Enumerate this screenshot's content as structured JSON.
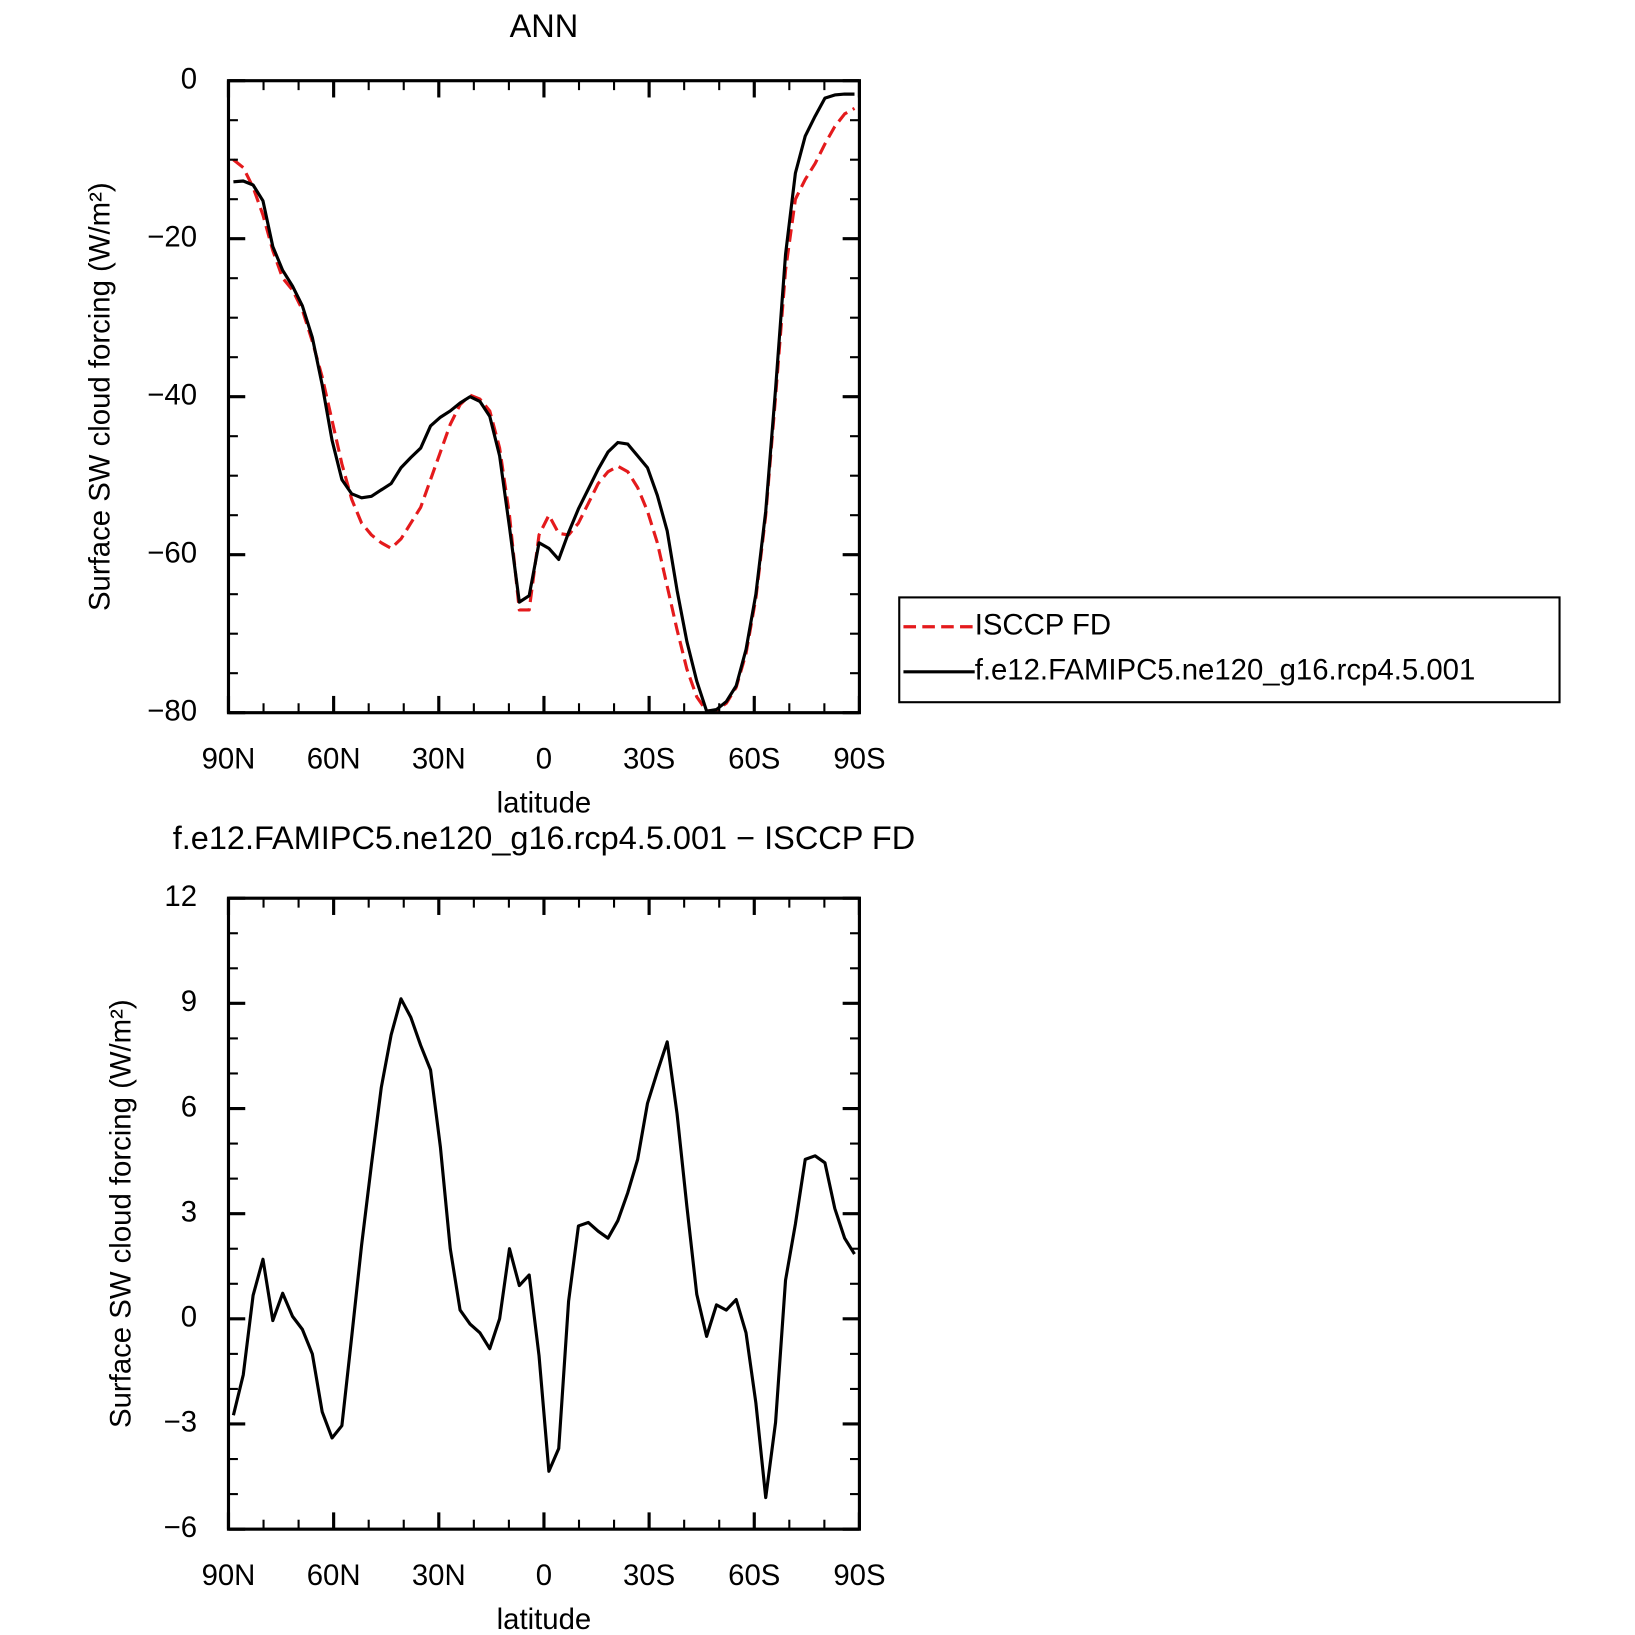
{
  "chart_data": [
    {
      "type": "line",
      "title": "ANN",
      "xlabel": "latitude",
      "ylabel": "Surface SW cloud forcing (W/m²)",
      "xlim": [
        90,
        -90
      ],
      "xticks": [
        {
          "value": 90,
          "label": "90N"
        },
        {
          "value": 60,
          "label": "60N"
        },
        {
          "value": 30,
          "label": "30N"
        },
        0,
        {
          "value": -30,
          "label": "30S"
        },
        {
          "value": -60,
          "label": "60S"
        },
        {
          "value": -90,
          "label": "90S"
        }
      ],
      "ylim": [
        -80,
        0
      ],
      "yticks": [
        0,
        {
          "value": -20,
          "label": "−20"
        },
        {
          "value": -40,
          "label": "−40"
        },
        {
          "value": -60,
          "label": "−60"
        },
        {
          "value": -80,
          "label": "−80"
        }
      ],
      "legend": "outside-right",
      "x": [
        88.59,
        85.78,
        82.97,
        80.16,
        77.34,
        74.53,
        71.72,
        68.91,
        66.09,
        63.28,
        60.47,
        57.66,
        54.84,
        52.03,
        49.22,
        46.41,
        43.59,
        40.78,
        37.97,
        35.16,
        32.34,
        29.53,
        26.72,
        23.91,
        21.09,
        18.28,
        15.47,
        12.66,
        9.84,
        7.03,
        4.22,
        1.41,
        -1.41,
        -4.22,
        -7.03,
        -9.84,
        -12.66,
        -15.47,
        -18.28,
        -21.09,
        -23.91,
        -26.72,
        -29.53,
        -32.34,
        -35.16,
        -37.97,
        -40.78,
        -43.59,
        -46.41,
        -49.22,
        -52.03,
        -54.84,
        -57.66,
        -60.47,
        -63.28,
        -66.09,
        -68.91,
        -71.72,
        -74.53,
        -77.34,
        -80.16,
        -82.97,
        -85.78,
        -88.59
      ],
      "series": [
        {
          "name": "ISCCP FD",
          "color": "#e41a1c",
          "linestyle": "dashed",
          "values": [
            -10,
            -11,
            -13.5,
            -17,
            -21.5,
            -25,
            -26.5,
            -29,
            -33,
            -37.5,
            -43,
            -48.5,
            -53,
            -56,
            -57.5,
            -58.5,
            -59.2,
            -58,
            -56,
            -54,
            -50.5,
            -47,
            -43.5,
            -41,
            -39.8,
            -40.3,
            -41.8,
            -46.5,
            -55,
            -67,
            -67,
            -57.5,
            -55,
            -57.3,
            -57.5,
            -56,
            -53.5,
            -51,
            -49.5,
            -48.8,
            -49.5,
            -51.5,
            -54.5,
            -58.5,
            -64,
            -69.5,
            -74.5,
            -78,
            -79.8,
            -79.7,
            -78.8,
            -76.8,
            -72.5,
            -65.5,
            -55,
            -40,
            -24,
            -15,
            -12.5,
            -10.5,
            -8,
            -5.8,
            -4.2,
            -3.5
          ]
        },
        {
          "name": "f.e12.FAMIPC5.ne120_g16.rcp4.5.001",
          "color": "#000000",
          "linestyle": "solid",
          "values": [
            -12.8,
            -12.7,
            -13.2,
            -15.2,
            -21,
            -24,
            -26,
            -28.5,
            -32.5,
            -38.5,
            -45.5,
            -50.5,
            -52.3,
            -52.8,
            -52.6,
            -51.8,
            -51,
            -49,
            -47.7,
            -46.5,
            -43.7,
            -42.6,
            -41.8,
            -40.8,
            -40,
            -40.6,
            -42.5,
            -47.5,
            -56.5,
            -66,
            -65.2,
            -58.5,
            -59.2,
            -60.6,
            -57.2,
            -54.2,
            -51.7,
            -49.2,
            -47,
            -45.8,
            -46,
            -47.5,
            -49,
            -52.5,
            -57,
            -64.5,
            -71,
            -76,
            -79.8,
            -79.6,
            -78.6,
            -76.6,
            -72,
            -65,
            -54.5,
            -39,
            -22,
            -11.7,
            -7,
            -4.5,
            -2.2,
            -1.8,
            -1.7,
            -1.7
          ]
        }
      ]
    },
    {
      "type": "line",
      "title": "f.e12.FAMIPC5.ne120_g16.rcp4.5.001 − ISCCP FD",
      "xlabel": "latitude",
      "ylabel": "Surface SW cloud forcing (W/m²)",
      "xlim": [
        90,
        -90
      ],
      "xticks": [
        {
          "value": 90,
          "label": "90N"
        },
        {
          "value": 60,
          "label": "60N"
        },
        {
          "value": 30,
          "label": "30N"
        },
        0,
        {
          "value": -30,
          "label": "30S"
        },
        {
          "value": -60,
          "label": "60S"
        },
        {
          "value": -90,
          "label": "90S"
        }
      ],
      "ylim": [
        -6,
        12
      ],
      "yticks": [
        12,
        9,
        6,
        3,
        0,
        {
          "value": -3,
          "label": "−3"
        },
        {
          "value": -6,
          "label": "−6"
        }
      ],
      "x": [
        88.59,
        85.78,
        82.97,
        80.16,
        77.34,
        74.53,
        71.72,
        68.91,
        66.09,
        63.28,
        60.47,
        57.66,
        54.84,
        52.03,
        49.22,
        46.41,
        43.59,
        40.78,
        37.97,
        35.16,
        32.34,
        29.53,
        26.72,
        23.91,
        21.09,
        18.28,
        15.47,
        12.66,
        9.84,
        7.03,
        4.22,
        1.41,
        -1.41,
        -4.22,
        -7.03,
        -9.84,
        -12.66,
        -15.47,
        -18.28,
        -21.09,
        -23.91,
        -26.72,
        -29.53,
        -32.34,
        -35.16,
        -37.97,
        -40.78,
        -43.59,
        -46.41,
        -49.22,
        -52.03,
        -54.84,
        -57.66,
        -60.47,
        -63.28,
        -66.09,
        -68.91,
        -71.72,
        -74.53,
        -77.34,
        -80.16,
        -82.97,
        -85.78,
        -88.59
      ],
      "color": "#000000",
      "values": [
        -2.75,
        -1.6,
        0.67,
        1.7,
        -0.05,
        0.73,
        0.07,
        -0.3,
        -1,
        -2.65,
        -3.4,
        -3.05,
        -0.5,
        2.1,
        4.4,
        6.6,
        8.1,
        9.13,
        8.6,
        7.8,
        7.1,
        4.9,
        2,
        0.25,
        -0.15,
        -0.4,
        -0.85,
        0,
        2,
        0.95,
        1.25,
        -1.05,
        -4.35,
        -3.7,
        0.5,
        2.65,
        2.75,
        2.5,
        2.3,
        2.8,
        3.6,
        4.55,
        6.15,
        7.05,
        7.9,
        5.85,
        3.2,
        0.7,
        -0.5,
        0.4,
        0.25,
        0.55,
        -0.4,
        -2.4,
        -5.1,
        -2.95,
        1.1,
        2.7,
        4.55,
        4.65,
        4.45,
        3.15,
        2.3,
        1.85
      ]
    }
  ]
}
